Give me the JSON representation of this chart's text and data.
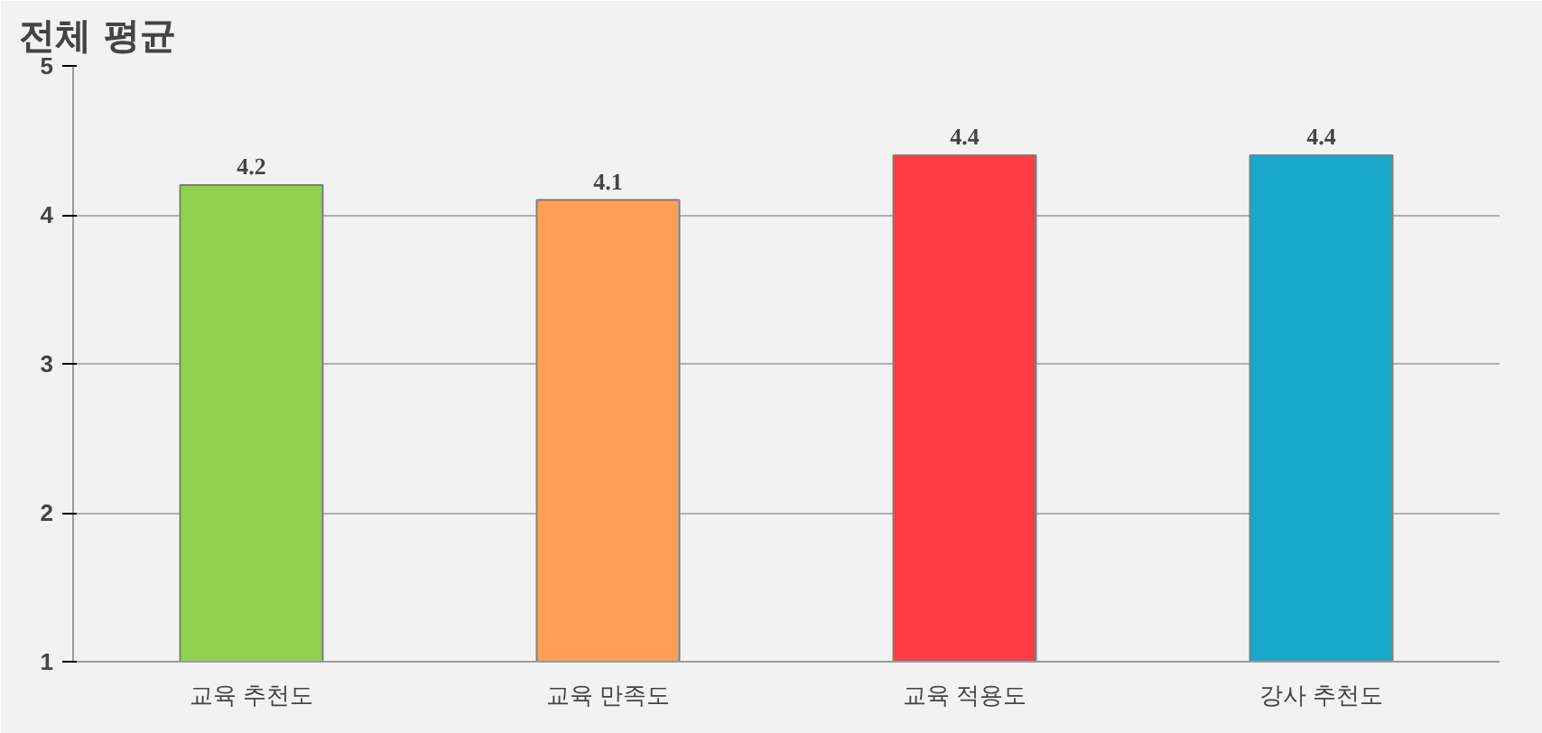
{
  "chart_data": {
    "type": "bar",
    "title": "전체 평균",
    "categories": [
      "교육 추천도",
      "교육 만족도",
      "교육 적용도",
      "강사 추천도"
    ],
    "values": [
      4.2,
      4.1,
      4.4,
      4.4
    ],
    "colors": [
      "#92d050",
      "#ff9f55",
      "#ff3b44",
      "#17a8cc"
    ],
    "ylim": [
      1,
      5
    ],
    "yticks": [
      1,
      2,
      3,
      4,
      5
    ],
    "grid": "y",
    "data_labels": true
  }
}
